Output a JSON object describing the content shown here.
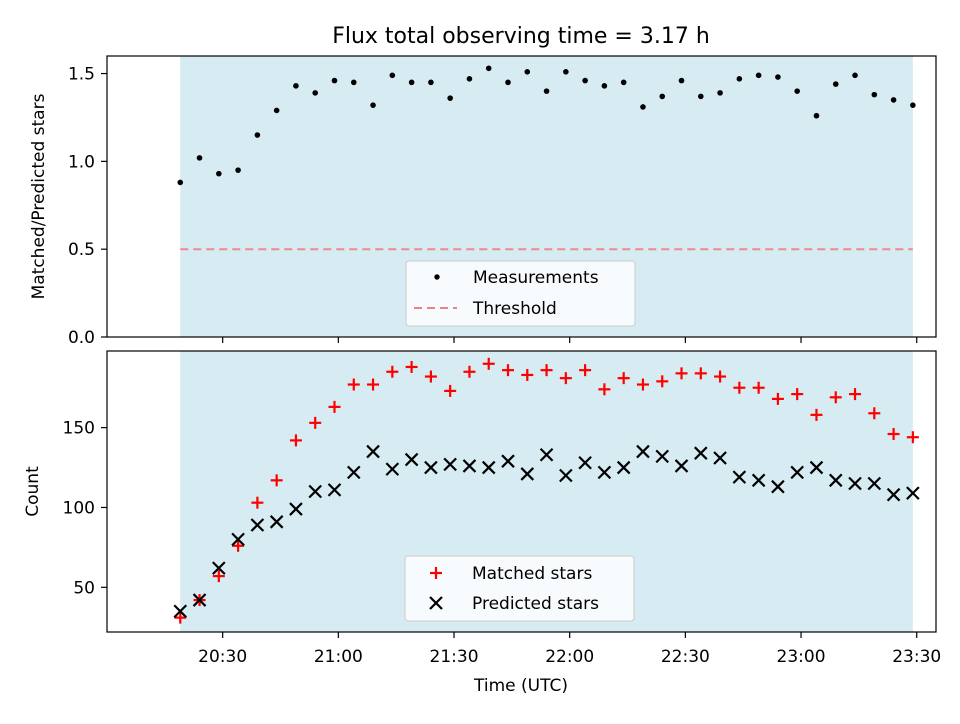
{
  "title": "Flux total observing time = 3.17 h",
  "colors": {
    "shade": "#add8e6",
    "threshold": "#f08080",
    "matched": "#ff0000",
    "predicted": "#000000",
    "measurement": "#000000"
  },
  "chart_data": [
    {
      "type": "scatter",
      "title": "Flux total observing time = 3.17 h",
      "xlabel": "",
      "ylabel": "Matched/Predicted stars",
      "ylim": [
        0,
        1.6
      ],
      "yticks": [
        "0.0",
        "0.5",
        "1.0",
        "1.5"
      ],
      "xticks": [
        "20:30",
        "21:00",
        "21:30",
        "22:00",
        "22:30",
        "23:00",
        "23:30"
      ],
      "legend_position": "lower-center",
      "shaded_span": [
        "20:19",
        "23:29"
      ],
      "threshold": {
        "name": "Threshold",
        "value": 0.5,
        "style": "dashed"
      },
      "series": [
        {
          "name": "Measurements",
          "x": [
            "20:19",
            "20:24",
            "20:29",
            "20:34",
            "20:39",
            "20:44",
            "20:49",
            "20:54",
            "20:59",
            "21:04",
            "21:09",
            "21:14",
            "21:19",
            "21:24",
            "21:29",
            "21:34",
            "21:39",
            "21:44",
            "21:49",
            "21:54",
            "21:59",
            "22:04",
            "22:09",
            "22:14",
            "22:19",
            "22:24",
            "22:29",
            "22:34",
            "22:39",
            "22:44",
            "22:49",
            "22:54",
            "22:59",
            "23:04",
            "23:09",
            "23:14",
            "23:19",
            "23:24",
            "23:29"
          ],
          "values": [
            0.88,
            1.02,
            0.93,
            0.95,
            1.15,
            1.29,
            1.43,
            1.39,
            1.46,
            1.45,
            1.32,
            1.49,
            1.45,
            1.45,
            1.36,
            1.47,
            1.53,
            1.45,
            1.51,
            1.4,
            1.51,
            1.46,
            1.43,
            1.45,
            1.31,
            1.37,
            1.46,
            1.37,
            1.39,
            1.47,
            1.49,
            1.48,
            1.4,
            1.26,
            1.44,
            1.49,
            1.38,
            1.35,
            1.32
          ]
        }
      ]
    },
    {
      "type": "scatter",
      "title": "",
      "xlabel": "Time (UTC)",
      "ylabel": "Count",
      "ylim": [
        22,
        198
      ],
      "yticks": [
        "50",
        "100",
        "150"
      ],
      "xticks": [
        "20:30",
        "21:00",
        "21:30",
        "22:00",
        "22:30",
        "23:00",
        "23:30"
      ],
      "legend_position": "lower-center",
      "shaded_span": [
        "20:19",
        "23:29"
      ],
      "series": [
        {
          "name": "Matched stars",
          "marker": "plus",
          "x": [
            "20:19",
            "20:24",
            "20:29",
            "20:34",
            "20:39",
            "20:44",
            "20:49",
            "20:54",
            "20:59",
            "21:04",
            "21:09",
            "21:14",
            "21:19",
            "21:24",
            "21:29",
            "21:34",
            "21:39",
            "21:44",
            "21:49",
            "21:54",
            "21:59",
            "22:04",
            "22:09",
            "22:14",
            "22:19",
            "22:24",
            "22:29",
            "22:34",
            "22:39",
            "22:44",
            "22:49",
            "22:54",
            "22:59",
            "23:04",
            "23:09",
            "23:14",
            "23:19",
            "23:24",
            "23:29"
          ],
          "values": [
            31,
            42,
            57,
            76,
            103,
            117,
            142,
            153,
            163,
            177,
            177,
            185,
            188,
            182,
            173,
            185,
            190,
            186,
            183,
            186,
            181,
            186,
            174,
            181,
            177,
            179,
            184,
            184,
            182,
            175,
            175,
            168,
            171,
            158,
            169,
            171,
            159,
            146,
            144
          ]
        },
        {
          "name": "Predicted stars",
          "marker": "x",
          "x": [
            "20:19",
            "20:24",
            "20:29",
            "20:34",
            "20:39",
            "20:44",
            "20:49",
            "20:54",
            "20:59",
            "21:04",
            "21:09",
            "21:14",
            "21:19",
            "21:24",
            "21:29",
            "21:34",
            "21:39",
            "21:44",
            "21:49",
            "21:54",
            "21:59",
            "22:04",
            "22:09",
            "22:14",
            "22:19",
            "22:24",
            "22:29",
            "22:34",
            "22:39",
            "22:44",
            "22:49",
            "22:54",
            "22:59",
            "23:04",
            "23:09",
            "23:14",
            "23:19",
            "23:24",
            "23:29"
          ],
          "values": [
            35,
            42,
            62,
            80,
            89,
            91,
            99,
            110,
            111,
            122,
            135,
            124,
            130,
            125,
            127,
            126,
            125,
            129,
            121,
            133,
            120,
            128,
            122,
            125,
            135,
            132,
            126,
            134,
            131,
            119,
            117,
            113,
            122,
            125,
            117,
            115,
            115,
            108,
            109
          ]
        }
      ]
    }
  ]
}
